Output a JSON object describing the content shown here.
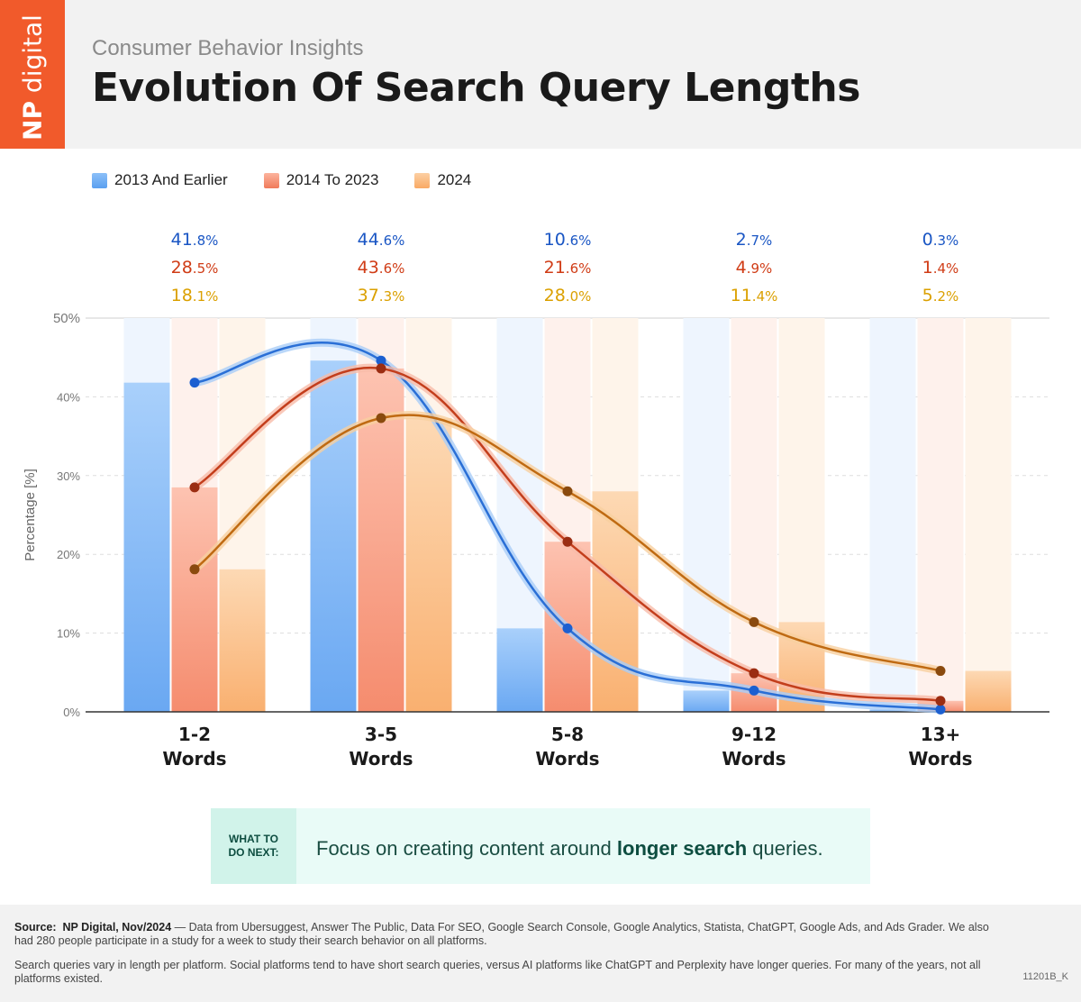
{
  "header": {
    "logo_np": "NP",
    "logo_digital": "digital",
    "subtitle": "Consumer Behavior Insights",
    "title": "Evolution Of Search Query Lengths"
  },
  "colors": {
    "blue": "#5a9ff0",
    "red": "#f07a5a",
    "orange": "#f9a964",
    "line_blue": "#2a6fd6",
    "line_red": "#c33e1c",
    "line_orange": "#bf6a12",
    "label_blue": "#1a56c4",
    "label_red": "#d03c16",
    "label_orange": "#dba000",
    "brand": "#f15a2b"
  },
  "chart_data": {
    "type": "bar",
    "categories": [
      [
        "1-2",
        "Words"
      ],
      [
        "3-5",
        "Words"
      ],
      [
        "5-8",
        "Words"
      ],
      [
        "9-12",
        "Words"
      ],
      [
        "13+",
        "Words"
      ]
    ],
    "series": [
      {
        "name": "2013 And Earlier",
        "values": [
          41.8,
          44.6,
          10.6,
          2.7,
          0.3
        ],
        "labels": [
          "41.8%",
          "44.6%",
          "10.6%",
          "2.7%",
          "0.3%"
        ]
      },
      {
        "name": "2014 To 2023",
        "values": [
          28.5,
          43.6,
          21.6,
          4.9,
          1.4
        ],
        "labels": [
          "28.5%",
          "43.6%",
          "21.6%",
          "4.9%",
          "1.4%"
        ]
      },
      {
        "name": "2024",
        "values": [
          18.1,
          37.3,
          28.0,
          11.4,
          5.2
        ],
        "labels": [
          "18.1%",
          "37.3%",
          "28.0%",
          "11.4%",
          "5.2%"
        ]
      }
    ],
    "ylabel": "Percentage [%]",
    "ylim": [
      0,
      50
    ],
    "yticks": [
      "0%",
      "10%",
      "20%",
      "30%",
      "40%",
      "50%"
    ],
    "grid": true,
    "overlay": "smoothed line per series connecting each category value",
    "legend_position": "top-left"
  },
  "callout": {
    "label": "WHAT TO\nDO NEXT:",
    "text_before": "Focus on creating content around ",
    "text_bold": "longer search",
    "text_after": " queries."
  },
  "footer": {
    "source_label": "Source:",
    "source_org": "NP Digital, Nov/2024",
    "source_text": " — Data from Ubersuggest, Answer The Public, Data For SEO, Google Search Console, Google Analytics, Statista, ChatGPT, Google Ads, and Ads Grader. We also had 280 people participate in a study for a week to study their search behavior on all platforms.",
    "note": "Search queries vary in length per platform. Social platforms tend to have short search queries, versus AI platforms like ChatGPT and Perplexity have longer queries. For many of the years, not all platforms existed.",
    "code": "11201B_K"
  }
}
